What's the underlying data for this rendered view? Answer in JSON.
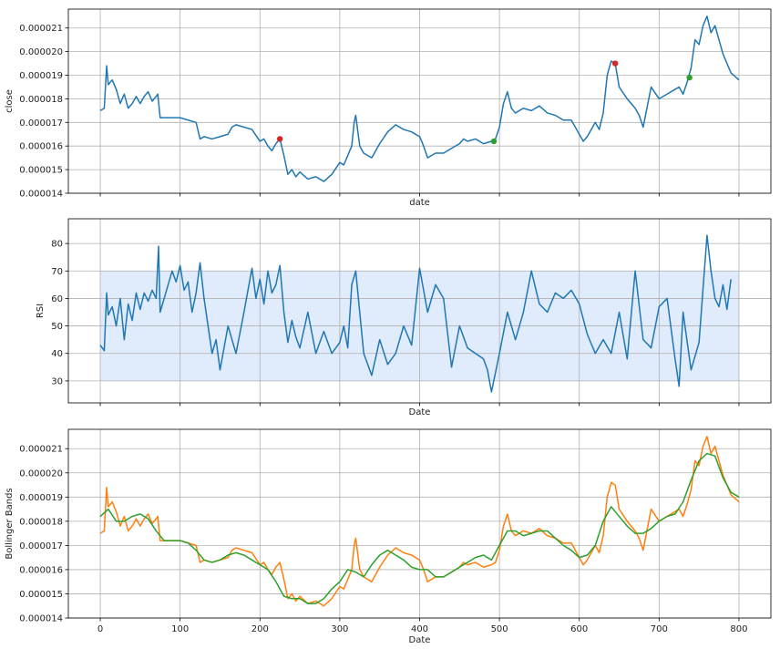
{
  "chart_data": [
    {
      "type": "line",
      "xlabel": "date",
      "ylabel": "close",
      "xlim": [
        -40,
        840
      ],
      "ylim": [
        1.4e-05,
        2.18e-05
      ],
      "grid": true,
      "xticks": [
        0,
        100,
        200,
        300,
        400,
        500,
        600,
        700,
        800
      ],
      "show_xtick_labels": false,
      "yticks": [
        1.4e-05,
        1.5e-05,
        1.6e-05,
        1.7e-05,
        1.8e-05,
        1.9e-05,
        2e-05,
        2.1e-05
      ],
      "ytick_labels": [
        "0.000014",
        "0.000015",
        "0.000016",
        "0.000017",
        "0.000018",
        "0.000019",
        "0.000020",
        "0.000021"
      ],
      "series": [
        {
          "color": "#1f77b4",
          "x": [
            0,
            5,
            8,
            10,
            15,
            20,
            25,
            30,
            35,
            40,
            45,
            50,
            55,
            60,
            65,
            70,
            72,
            75,
            80,
            90,
            100,
            110,
            120,
            125,
            130,
            140,
            150,
            160,
            165,
            170,
            180,
            190,
            200,
            205,
            210,
            215,
            220,
            225,
            230,
            235,
            240,
            245,
            250,
            260,
            270,
            280,
            290,
            300,
            305,
            310,
            315,
            318,
            320,
            325,
            330,
            340,
            350,
            360,
            370,
            380,
            390,
            400,
            405,
            410,
            420,
            430,
            440,
            450,
            455,
            460,
            470,
            480,
            490,
            495,
            500,
            505,
            510,
            515,
            520,
            530,
            540,
            550,
            560,
            570,
            580,
            590,
            600,
            605,
            610,
            620,
            625,
            630,
            635,
            640,
            645,
            650,
            660,
            670,
            675,
            680,
            690,
            700,
            710,
            720,
            725,
            730,
            735,
            740,
            745,
            750,
            755,
            760,
            765,
            770,
            780,
            790,
            800
          ],
          "y": [
            1.75e-05,
            1.76e-05,
            1.94e-05,
            1.86e-05,
            1.88e-05,
            1.84e-05,
            1.78e-05,
            1.82e-05,
            1.76e-05,
            1.78e-05,
            1.81e-05,
            1.78e-05,
            1.81e-05,
            1.83e-05,
            1.79e-05,
            1.81e-05,
            1.82e-05,
            1.72e-05,
            1.72e-05,
            1.72e-05,
            1.72e-05,
            1.71e-05,
            1.7e-05,
            1.63e-05,
            1.64e-05,
            1.63e-05,
            1.64e-05,
            1.65e-05,
            1.68e-05,
            1.69e-05,
            1.68e-05,
            1.67e-05,
            1.62e-05,
            1.63e-05,
            1.6e-05,
            1.58e-05,
            1.61e-05,
            1.63e-05,
            1.56e-05,
            1.48e-05,
            1.5e-05,
            1.47e-05,
            1.49e-05,
            1.46e-05,
            1.47e-05,
            1.45e-05,
            1.48e-05,
            1.53e-05,
            1.52e-05,
            1.56e-05,
            1.6e-05,
            1.7e-05,
            1.73e-05,
            1.6e-05,
            1.57e-05,
            1.55e-05,
            1.61e-05,
            1.66e-05,
            1.69e-05,
            1.67e-05,
            1.66e-05,
            1.64e-05,
            1.6e-05,
            1.55e-05,
            1.57e-05,
            1.57e-05,
            1.59e-05,
            1.61e-05,
            1.63e-05,
            1.62e-05,
            1.63e-05,
            1.61e-05,
            1.62e-05,
            1.63e-05,
            1.68e-05,
            1.78e-05,
            1.83e-05,
            1.76e-05,
            1.74e-05,
            1.76e-05,
            1.75e-05,
            1.77e-05,
            1.74e-05,
            1.73e-05,
            1.71e-05,
            1.71e-05,
            1.65e-05,
            1.62e-05,
            1.64e-05,
            1.7e-05,
            1.67e-05,
            1.74e-05,
            1.9e-05,
            1.96e-05,
            1.95e-05,
            1.85e-05,
            1.8e-05,
            1.76e-05,
            1.73e-05,
            1.68e-05,
            1.85e-05,
            1.8e-05,
            1.82e-05,
            1.84e-05,
            1.85e-05,
            1.82e-05,
            1.87e-05,
            1.93e-05,
            2.05e-05,
            2.03e-05,
            2.11e-05,
            2.15e-05,
            2.08e-05,
            2.11e-05,
            1.99e-05,
            1.91e-05,
            1.88e-05
          ],
          "points": [
            {
              "x": 225,
              "y": 1.63e-05,
              "color": "#d62728"
            },
            {
              "x": 493,
              "y": 1.62e-05,
              "color": "#2ca02c"
            },
            {
              "x": 645,
              "y": 1.95e-05,
              "color": "#d62728"
            },
            {
              "x": 738,
              "y": 1.89e-05,
              "color": "#2ca02c"
            }
          ]
        }
      ]
    },
    {
      "type": "line",
      "xlabel": "Date",
      "ylabel": "RSI",
      "xlim": [
        -40,
        840
      ],
      "ylim": [
        22,
        89
      ],
      "grid": true,
      "xticks": [
        0,
        100,
        200,
        300,
        400,
        500,
        600,
        700,
        800
      ],
      "show_xtick_labels": false,
      "yticks": [
        30,
        40,
        50,
        60,
        70,
        80
      ],
      "ytick_labels": [
        "30",
        "40",
        "50",
        "60",
        "70",
        "80"
      ],
      "band": {
        "x": [
          0,
          800
        ],
        "y": [
          30,
          70
        ],
        "color": "#e0ebfb"
      },
      "series": [
        {
          "color": "#1f77b4",
          "x": [
            0,
            5,
            8,
            10,
            15,
            20,
            25,
            30,
            35,
            40,
            45,
            50,
            55,
            60,
            65,
            70,
            73,
            75,
            80,
            90,
            95,
            100,
            105,
            110,
            115,
            120,
            125,
            130,
            135,
            140,
            145,
            150,
            160,
            170,
            180,
            190,
            195,
            200,
            205,
            210,
            215,
            220,
            225,
            230,
            235,
            240,
            245,
            250,
            260,
            270,
            280,
            290,
            300,
            305,
            310,
            315,
            320,
            325,
            330,
            340,
            350,
            360,
            370,
            380,
            390,
            400,
            410,
            420,
            430,
            440,
            450,
            460,
            470,
            480,
            485,
            490,
            495,
            500,
            510,
            520,
            530,
            540,
            550,
            560,
            570,
            580,
            590,
            600,
            610,
            620,
            630,
            640,
            650,
            660,
            670,
            680,
            690,
            700,
            710,
            720,
            725,
            730,
            740,
            750,
            760,
            765,
            770,
            775,
            780,
            785,
            790
          ],
          "y": [
            43,
            41,
            62,
            54,
            57,
            50,
            60,
            45,
            58,
            52,
            62,
            56,
            62,
            59,
            63,
            60,
            79,
            55,
            60,
            70,
            66,
            72,
            63,
            66,
            55,
            62,
            73,
            60,
            50,
            40,
            45,
            34,
            50,
            40,
            55,
            71,
            60,
            67,
            58,
            70,
            62,
            65,
            72,
            55,
            44,
            52,
            46,
            42,
            55,
            40,
            48,
            40,
            44,
            50,
            42,
            65,
            70,
            55,
            40,
            32,
            45,
            36,
            40,
            50,
            43,
            71,
            55,
            65,
            60,
            35,
            50,
            42,
            40,
            38,
            34,
            26,
            33,
            40,
            55,
            45,
            55,
            70,
            58,
            55,
            62,
            60,
            63,
            58,
            47,
            40,
            45,
            40,
            55,
            38,
            70,
            45,
            42,
            57,
            60,
            38,
            28,
            55,
            34,
            44,
            83,
            70,
            60,
            57,
            65,
            56,
            67
          ]
        }
      ]
    },
    {
      "type": "line",
      "xlabel": "Date",
      "ylabel": "Bollinger Bands",
      "xlim": [
        -40,
        840
      ],
      "ylim": [
        1.4e-05,
        2.18e-05
      ],
      "grid": true,
      "xticks": [
        0,
        100,
        200,
        300,
        400,
        500,
        600,
        700,
        800
      ],
      "xtick_labels": [
        "0",
        "100",
        "200",
        "300",
        "400",
        "500",
        "600",
        "700",
        "800"
      ],
      "show_xtick_labels": true,
      "yticks": [
        1.4e-05,
        1.5e-05,
        1.6e-05,
        1.7e-05,
        1.8e-05,
        1.9e-05,
        2e-05,
        2.1e-05
      ],
      "ytick_labels": [
        "0.000014",
        "0.000015",
        "0.000016",
        "0.000017",
        "0.000018",
        "0.000019",
        "0.000020",
        "0.000021"
      ],
      "series": [
        {
          "color": "#ff7f0e",
          "x": [
            0,
            5,
            8,
            10,
            15,
            20,
            25,
            30,
            35,
            40,
            45,
            50,
            55,
            60,
            65,
            70,
            72,
            75,
            80,
            90,
            100,
            110,
            120,
            125,
            130,
            140,
            150,
            160,
            165,
            170,
            180,
            190,
            200,
            205,
            210,
            215,
            220,
            225,
            230,
            235,
            240,
            245,
            250,
            260,
            270,
            280,
            290,
            300,
            305,
            310,
            315,
            318,
            320,
            325,
            330,
            340,
            350,
            360,
            370,
            380,
            390,
            400,
            405,
            410,
            420,
            430,
            440,
            450,
            455,
            460,
            470,
            480,
            490,
            495,
            500,
            505,
            510,
            515,
            520,
            530,
            540,
            550,
            560,
            570,
            580,
            590,
            600,
            605,
            610,
            620,
            625,
            630,
            635,
            640,
            645,
            650,
            660,
            670,
            675,
            680,
            690,
            700,
            710,
            720,
            725,
            730,
            735,
            740,
            745,
            750,
            755,
            760,
            765,
            770,
            780,
            790,
            800
          ],
          "y": [
            1.75e-05,
            1.76e-05,
            1.94e-05,
            1.86e-05,
            1.88e-05,
            1.84e-05,
            1.78e-05,
            1.82e-05,
            1.76e-05,
            1.78e-05,
            1.81e-05,
            1.78e-05,
            1.81e-05,
            1.83e-05,
            1.79e-05,
            1.81e-05,
            1.82e-05,
            1.72e-05,
            1.72e-05,
            1.72e-05,
            1.72e-05,
            1.71e-05,
            1.7e-05,
            1.63e-05,
            1.64e-05,
            1.63e-05,
            1.64e-05,
            1.65e-05,
            1.68e-05,
            1.69e-05,
            1.68e-05,
            1.67e-05,
            1.62e-05,
            1.63e-05,
            1.6e-05,
            1.58e-05,
            1.61e-05,
            1.63e-05,
            1.56e-05,
            1.48e-05,
            1.5e-05,
            1.47e-05,
            1.49e-05,
            1.46e-05,
            1.47e-05,
            1.45e-05,
            1.48e-05,
            1.53e-05,
            1.52e-05,
            1.56e-05,
            1.6e-05,
            1.7e-05,
            1.73e-05,
            1.6e-05,
            1.57e-05,
            1.55e-05,
            1.61e-05,
            1.66e-05,
            1.69e-05,
            1.67e-05,
            1.66e-05,
            1.64e-05,
            1.6e-05,
            1.55e-05,
            1.57e-05,
            1.57e-05,
            1.59e-05,
            1.61e-05,
            1.63e-05,
            1.62e-05,
            1.63e-05,
            1.61e-05,
            1.62e-05,
            1.63e-05,
            1.68e-05,
            1.78e-05,
            1.83e-05,
            1.76e-05,
            1.74e-05,
            1.76e-05,
            1.75e-05,
            1.77e-05,
            1.74e-05,
            1.73e-05,
            1.71e-05,
            1.71e-05,
            1.65e-05,
            1.62e-05,
            1.64e-05,
            1.7e-05,
            1.67e-05,
            1.74e-05,
            1.9e-05,
            1.96e-05,
            1.95e-05,
            1.85e-05,
            1.8e-05,
            1.76e-05,
            1.73e-05,
            1.68e-05,
            1.85e-05,
            1.8e-05,
            1.82e-05,
            1.84e-05,
            1.85e-05,
            1.82e-05,
            1.87e-05,
            1.93e-05,
            2.05e-05,
            2.03e-05,
            2.11e-05,
            2.15e-05,
            2.08e-05,
            2.11e-05,
            1.99e-05,
            1.91e-05,
            1.88e-05
          ]
        },
        {
          "color": "#2ca02c",
          "x": [
            0,
            10,
            20,
            30,
            40,
            50,
            60,
            70,
            80,
            90,
            100,
            110,
            120,
            130,
            140,
            150,
            160,
            170,
            180,
            190,
            200,
            210,
            220,
            230,
            240,
            250,
            260,
            270,
            280,
            290,
            300,
            310,
            320,
            330,
            340,
            350,
            360,
            370,
            380,
            390,
            400,
            410,
            420,
            430,
            440,
            450,
            460,
            470,
            480,
            490,
            500,
            510,
            520,
            530,
            540,
            550,
            560,
            570,
            580,
            590,
            600,
            610,
            620,
            630,
            640,
            650,
            660,
            670,
            680,
            690,
            700,
            710,
            720,
            730,
            740,
            750,
            760,
            770,
            780,
            790,
            800
          ],
          "y": [
            1.82e-05,
            1.85e-05,
            1.8e-05,
            1.8e-05,
            1.82e-05,
            1.83e-05,
            1.81e-05,
            1.76e-05,
            1.72e-05,
            1.72e-05,
            1.72e-05,
            1.71e-05,
            1.68e-05,
            1.64e-05,
            1.63e-05,
            1.64e-05,
            1.66e-05,
            1.67e-05,
            1.66e-05,
            1.64e-05,
            1.62e-05,
            1.6e-05,
            1.55e-05,
            1.49e-05,
            1.48e-05,
            1.48e-05,
            1.46e-05,
            1.46e-05,
            1.48e-05,
            1.52e-05,
            1.55e-05,
            1.6e-05,
            1.59e-05,
            1.57e-05,
            1.62e-05,
            1.66e-05,
            1.68e-05,
            1.66e-05,
            1.64e-05,
            1.61e-05,
            1.6e-05,
            1.6e-05,
            1.57e-05,
            1.57e-05,
            1.59e-05,
            1.61e-05,
            1.63e-05,
            1.65e-05,
            1.66e-05,
            1.64e-05,
            1.7e-05,
            1.76e-05,
            1.76e-05,
            1.74e-05,
            1.75e-05,
            1.76e-05,
            1.76e-05,
            1.73e-05,
            1.7e-05,
            1.68e-05,
            1.65e-05,
            1.66e-05,
            1.7e-05,
            1.8e-05,
            1.86e-05,
            1.82e-05,
            1.78e-05,
            1.75e-05,
            1.75e-05,
            1.77e-05,
            1.8e-05,
            1.82e-05,
            1.83e-05,
            1.88e-05,
            1.97e-05,
            2.05e-05,
            2.08e-05,
            2.07e-05,
            1.98e-05,
            1.92e-05,
            1.9e-05
          ]
        }
      ]
    }
  ]
}
